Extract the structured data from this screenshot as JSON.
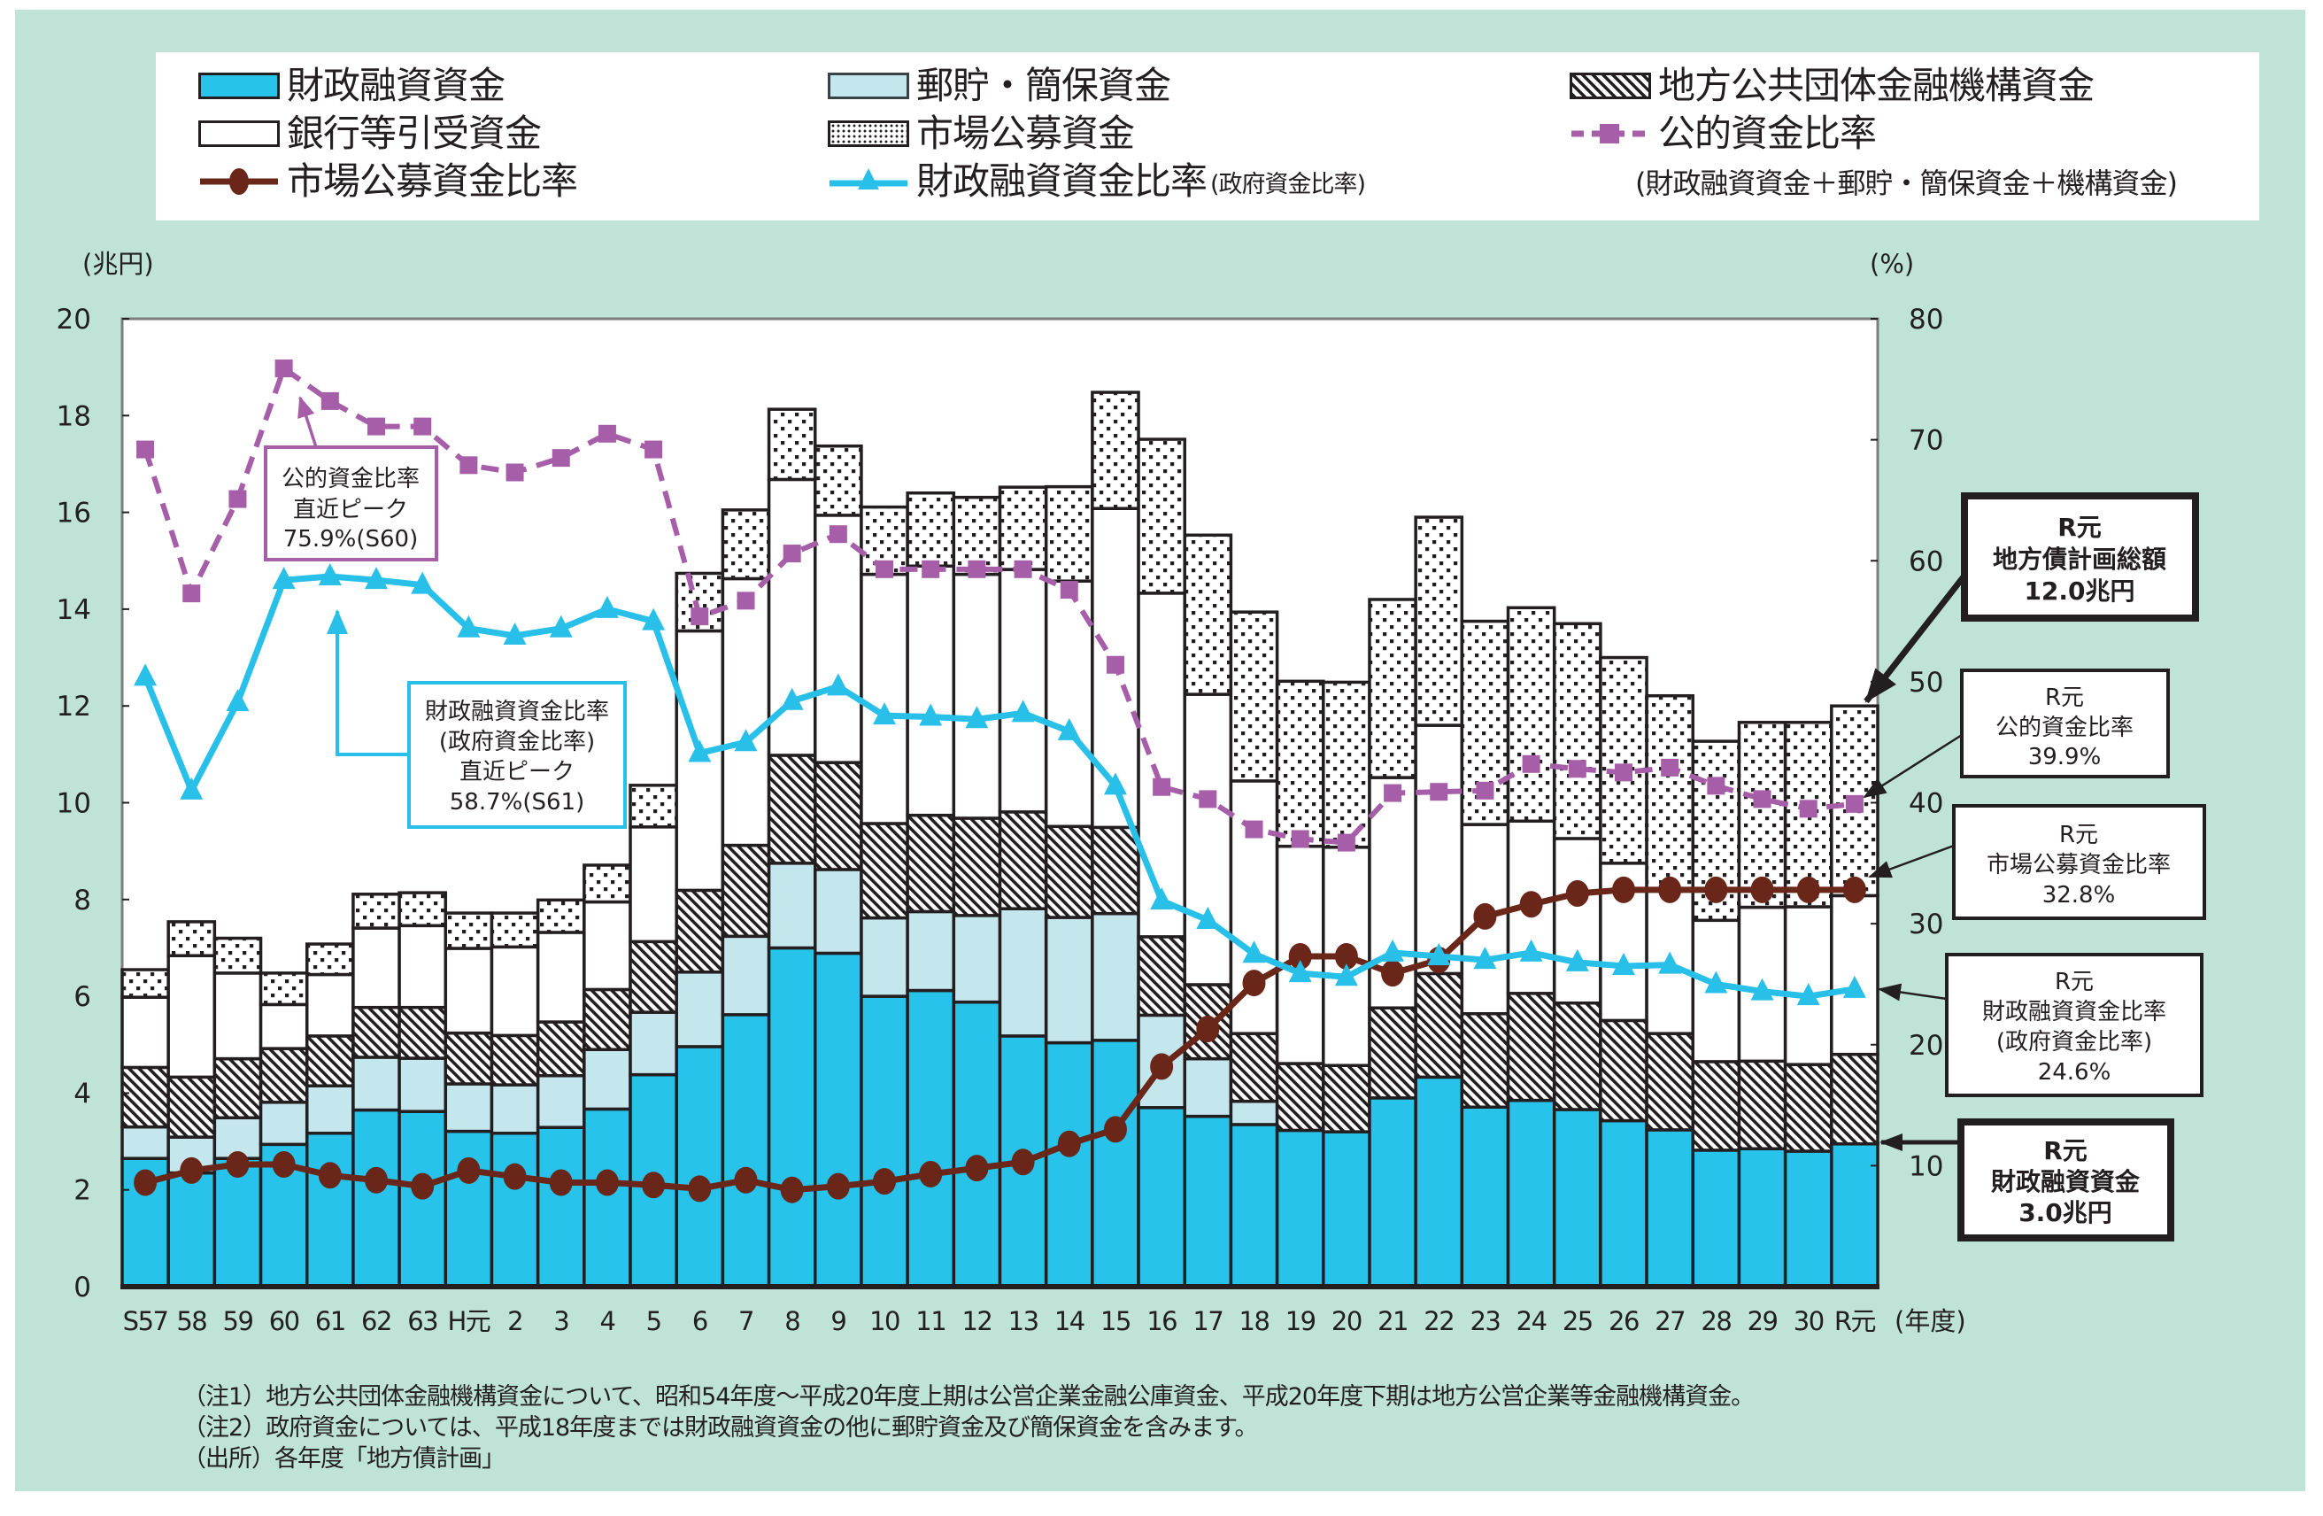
{
  "legend": {
    "items": [
      {
        "key": "fiscal-loan",
        "label": "財政融資資金"
      },
      {
        "key": "postal-insurance",
        "label": "郵貯・簡保資金"
      },
      {
        "key": "jfm",
        "label": "地方公共団体金融機構資金"
      },
      {
        "key": "bank",
        "label": "銀行等引受資金"
      },
      {
        "key": "market",
        "label": "市場公募資金"
      },
      {
        "key": "public-ratio",
        "label": "公的資金比率"
      },
      {
        "key": "market-ratio",
        "label": "市場公募資金比率"
      },
      {
        "key": "fiscal-ratio",
        "label": "財政融資資金比率",
        "sublabel": "(政府資金比率)"
      }
    ],
    "note": "(財政融資資金＋郵貯・簡保資金＋機構資金)"
  },
  "chart_data": {
    "type": "bar",
    "stacked": true,
    "title": "",
    "xlabel": "(年度)",
    "ylabel": "(兆円)",
    "y2label": "(%)",
    "ylim": [
      0,
      20
    ],
    "y2lim": [
      0,
      80
    ],
    "yticks": [
      0,
      2,
      4,
      6,
      8,
      10,
      12,
      14,
      16,
      18,
      20
    ],
    "y2ticks": [
      10,
      20,
      30,
      40,
      50,
      60,
      70,
      80
    ],
    "grid": false,
    "legend_position": "top",
    "categories": [
      "S57",
      "58",
      "59",
      "60",
      "61",
      "62",
      "63",
      "H元",
      "2",
      "3",
      "4",
      "5",
      "6",
      "7",
      "8",
      "9",
      "10",
      "11",
      "12",
      "13",
      "14",
      "15",
      "16",
      "17",
      "18",
      "19",
      "20",
      "21",
      "22",
      "23",
      "24",
      "25",
      "26",
      "27",
      "28",
      "29",
      "30",
      "R元"
    ],
    "series": [
      {
        "key": "fiscal-loan",
        "name": "財政融資資金",
        "type": "bar",
        "axis": "left",
        "fill": "solid",
        "color": "#27c3ea",
        "values": [
          2.65,
          2.35,
          2.65,
          2.94,
          3.17,
          3.65,
          3.62,
          3.21,
          3.17,
          3.29,
          3.67,
          4.38,
          4.96,
          5.62,
          7.0,
          6.89,
          6.0,
          6.12,
          5.88,
          5.18,
          5.04,
          5.09,
          3.7,
          3.52,
          3.35,
          3.23,
          3.2,
          3.9,
          4.33,
          3.71,
          3.85,
          3.66,
          3.43,
          3.24,
          2.82,
          2.85,
          2.8,
          2.95
        ]
      },
      {
        "key": "postal-insurance",
        "name": "郵貯・簡保資金",
        "type": "bar",
        "axis": "left",
        "fill": "solid",
        "color": "#c4e6ed",
        "values": [
          0.65,
          0.74,
          0.84,
          0.87,
          0.98,
          1.09,
          1.1,
          0.98,
          1.0,
          1.07,
          1.23,
          1.29,
          1.54,
          1.62,
          1.75,
          1.73,
          1.62,
          1.63,
          1.79,
          2.63,
          2.59,
          2.62,
          1.91,
          1.19,
          0.48,
          0,
          0,
          0,
          0,
          0,
          0,
          0,
          0,
          0,
          0,
          0,
          0,
          0
        ]
      },
      {
        "key": "jfm",
        "name": "地方公共団体金融機構資金",
        "type": "bar",
        "axis": "left",
        "fill": "hatch",
        "color": "#231f20",
        "values": [
          1.23,
          1.24,
          1.22,
          1.11,
          1.03,
          1.03,
          1.05,
          1.05,
          1.02,
          1.11,
          1.24,
          1.46,
          1.69,
          1.88,
          2.23,
          2.21,
          1.95,
          1.99,
          2.01,
          2.0,
          1.88,
          1.78,
          1.62,
          1.53,
          1.4,
          1.38,
          1.37,
          1.86,
          2.14,
          1.93,
          2.21,
          2.2,
          2.07,
          1.99,
          1.83,
          1.81,
          1.79,
          1.85
        ]
      },
      {
        "key": "bank",
        "name": "銀行等引受資金",
        "type": "bar",
        "axis": "left",
        "fill": "white",
        "color": "#ffffff",
        "values": [
          1.45,
          2.51,
          1.77,
          0.91,
          1.27,
          1.64,
          1.69,
          1.75,
          1.83,
          1.85,
          1.81,
          2.37,
          5.36,
          5.51,
          5.7,
          5.11,
          5.15,
          5.15,
          5.04,
          5.01,
          5.07,
          6.59,
          7.1,
          6.0,
          5.22,
          4.49,
          4.51,
          4.76,
          5.13,
          3.91,
          3.56,
          3.4,
          3.25,
          2.98,
          2.92,
          3.18,
          3.26,
          3.28
        ]
      },
      {
        "key": "market",
        "name": "市場公募資金",
        "type": "bar",
        "axis": "left",
        "fill": "dots",
        "color": "#231f20",
        "values": [
          0.57,
          0.7,
          0.72,
          0.65,
          0.63,
          0.7,
          0.68,
          0.73,
          0.7,
          0.67,
          0.76,
          0.86,
          1.19,
          1.42,
          1.45,
          1.43,
          1.39,
          1.51,
          1.59,
          1.7,
          1.95,
          2.4,
          3.18,
          3.29,
          3.49,
          3.41,
          3.41,
          3.68,
          4.3,
          4.2,
          4.41,
          4.44,
          4.25,
          4.0,
          3.7,
          3.82,
          3.81,
          3.92
        ]
      },
      {
        "key": "public-ratio",
        "name": "公的資金比率",
        "type": "line",
        "axis": "right",
        "marker": "square",
        "dashed": true,
        "color": "#a65ea8",
        "values": [
          69.2,
          57.3,
          65.1,
          75.9,
          73.2,
          71.1,
          71.1,
          67.9,
          67.3,
          68.5,
          70.5,
          69.2,
          55.4,
          56.7,
          60.6,
          62.2,
          59.3,
          59.3,
          59.3,
          59.3,
          57.6,
          51.4,
          41.3,
          40.3,
          37.8,
          37.0,
          36.7,
          40.8,
          40.9,
          41.0,
          43.2,
          42.8,
          42.5,
          42.9,
          41.4,
          40.3,
          39.5,
          39.9
        ]
      },
      {
        "key": "market-ratio",
        "name": "市場公募資金比率",
        "type": "line",
        "axis": "right",
        "marker": "circle",
        "dashed": false,
        "color": "#6a2719",
        "values": [
          8.6,
          9.6,
          10.1,
          10.1,
          9.2,
          8.8,
          8.3,
          9.6,
          9.1,
          8.6,
          8.6,
          8.4,
          8.1,
          8.8,
          8.0,
          8.3,
          8.7,
          9.3,
          9.8,
          10.3,
          11.8,
          13.0,
          18.2,
          21.3,
          25.1,
          27.3,
          27.3,
          25.9,
          27.0,
          30.6,
          31.6,
          32.5,
          32.8,
          32.8,
          32.8,
          32.8,
          32.8,
          32.8
        ]
      },
      {
        "key": "fiscal-ratio",
        "name": "財政融資資金比率(政府資金比率)",
        "type": "line",
        "axis": "right",
        "marker": "triangle",
        "dashed": false,
        "color": "#28c0e9",
        "values": [
          50.4,
          41.0,
          48.3,
          58.4,
          58.7,
          58.4,
          58.0,
          54.4,
          53.8,
          54.4,
          56.0,
          55.0,
          44.1,
          45.0,
          48.4,
          49.6,
          47.2,
          47.1,
          46.9,
          47.4,
          45.9,
          41.4,
          31.9,
          30.3,
          27.5,
          25.9,
          25.6,
          27.6,
          27.3,
          27.0,
          27.6,
          26.8,
          26.5,
          26.6,
          25.0,
          24.4,
          24.0,
          24.6
        ]
      }
    ],
    "annotations": [
      {
        "id": "public-ratio-peak",
        "target": "公的資金比率 S60",
        "lines": [
          "公的資金比率",
          "直近ピーク",
          "75.9%(S60)"
        ]
      },
      {
        "id": "fiscal-ratio-peak",
        "target": "財政融資資金比率 S61",
        "lines": [
          "財政融資資金比率",
          "(政府資金比率)",
          "直近ピーク",
          "58.7%(S61)"
        ]
      },
      {
        "id": "r1-total",
        "target": "R元 total",
        "lines": [
          "R元",
          "地方債計画総額",
          "12.0兆円"
        ]
      },
      {
        "id": "r1-public-ratio",
        "target": "R元 公的資金比率",
        "lines": [
          "R元",
          "公的資金比率",
          "39.9%"
        ]
      },
      {
        "id": "r1-market-ratio",
        "target": "R元 市場公募資金比率",
        "lines": [
          "R元",
          "市場公募資金比率",
          "32.8%"
        ]
      },
      {
        "id": "r1-fiscal-ratio",
        "target": "R元 財政融資資金比率",
        "lines": [
          "R元",
          "財政融資資金比率",
          "(政府資金比率)",
          "24.6%"
        ]
      },
      {
        "id": "r1-fiscal-loan",
        "target": "R元 財政融資資金",
        "lines": [
          "R元",
          "財政融資資金",
          "3.0兆円"
        ]
      }
    ]
  },
  "notes": [
    "（注1）地方公共団体金融機構資金について、昭和54年度～平成20年度上期は公営企業金融公庫資金、平成20年度下期は地方公営企業等金融機構資金。",
    "（注2）政府資金については、平成18年度までは財政融資資金の他に郵貯資金及び簡保資金を含みます。",
    "（出所）各年度「地方債計画」"
  ]
}
